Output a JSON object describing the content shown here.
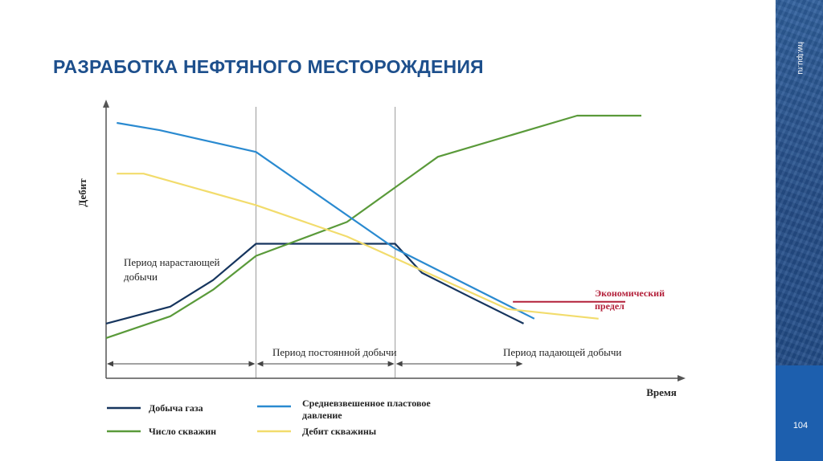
{
  "slide": {
    "title": "РАЗРАБОТКА НЕФТЯНОГО МЕСТОРОЖДЕНИЯ",
    "site": "hw.tpu.ru",
    "page_number": "104"
  },
  "colors": {
    "title": "#1d4f8c",
    "gas": "#16355e",
    "wells": "#5a9a3a",
    "pressure": "#2a8ad0",
    "well_rate": "#f2dc6c",
    "econ_limit": "#b3203a",
    "side_panel": "#264f8a"
  },
  "chart_data": {
    "type": "line",
    "title": "",
    "xlabel": "Время",
    "ylabel": "Дебит",
    "xlim": [
      0,
      100
    ],
    "ylim": [
      0,
      100
    ],
    "grid": false,
    "x_ticks": false,
    "y_ticks": false,
    "legend_position": "bottom",
    "series": [
      {
        "name": "Добыча газа",
        "color": "#16355e",
        "x": [
          0,
          12,
          20,
          28,
          54,
          59,
          68,
          78
        ],
        "y": [
          14,
          21,
          32,
          47,
          47,
          35,
          25,
          14
        ]
      },
      {
        "name": "Число скважин",
        "color": "#5a9a3a",
        "x": [
          0,
          12,
          20,
          28,
          45,
          62,
          88,
          100
        ],
        "y": [
          8,
          17,
          28,
          42,
          56,
          83,
          100,
          100
        ]
      },
      {
        "name": "Средневзвешенное пластовое давление",
        "color": "#2a8ad0",
        "x": [
          2,
          10,
          28,
          54,
          80
        ],
        "y": [
          97,
          94,
          85,
          45,
          16
        ]
      },
      {
        "name": "Дебит скважины",
        "color": "#f2dc6c",
        "x": [
          2,
          7,
          28,
          45,
          75,
          92
        ],
        "y": [
          76,
          76,
          63,
          50,
          20,
          16
        ]
      }
    ],
    "reference_lines": [
      {
        "name": "Экономический предел",
        "lines": [
          "Экономический",
          "предел"
        ],
        "y": 23,
        "x_range": [
          76,
          97
        ],
        "color": "#b3203a"
      }
    ],
    "periods": [
      {
        "label_lines": [
          "Период нарастающей",
          "добычи"
        ],
        "x_range": [
          0,
          28
        ]
      },
      {
        "label_lines": [
          "Период постоянной добычи"
        ],
        "x_range": [
          28,
          54
        ]
      },
      {
        "label_lines": [
          "Период падающей добычи"
        ],
        "x_range": [
          54,
          78
        ]
      }
    ],
    "period_boundaries_x": [
      28,
      54
    ]
  }
}
